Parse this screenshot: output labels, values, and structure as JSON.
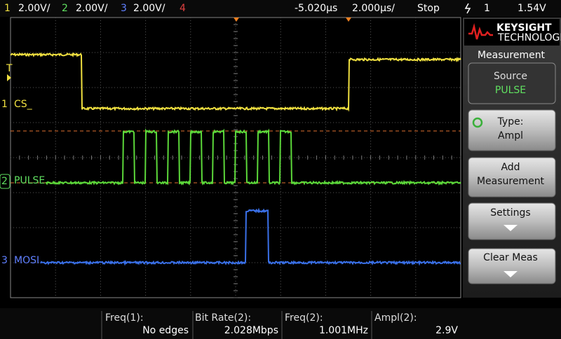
{
  "top_bar": {
    "ch1": "1",
    "ch1_scale": "2.00V/",
    "ch2": "2",
    "ch2_scale": "2.00V/",
    "ch3": "3",
    "ch3_scale": "2.00V/",
    "ch4": "4",
    "delay": "-5.020µs",
    "timebase": "2.000µs/",
    "run_state": "Stop",
    "trigger_source": "1",
    "trigger_level": "1.54V"
  },
  "channels": [
    {
      "marker": "1",
      "label": "CS_"
    },
    {
      "marker": "2",
      "label": "PULSE"
    },
    {
      "marker": "3",
      "label": "MOSI"
    }
  ],
  "trigger_marker": "T",
  "panel": {
    "brand": "KEYSIGHT",
    "brand_sub": "TECHNOLOGIES",
    "menu_title": "Measurement",
    "buttons": [
      {
        "label": "Source",
        "value": "PULSE"
      },
      {
        "label": "Type:",
        "value": "Ampl"
      },
      {
        "label": "Add",
        "value": "Measurement"
      },
      {
        "label": "Settings"
      },
      {
        "label": "Clear Meas"
      }
    ]
  },
  "measurements": [
    {
      "name": "Freq(1):",
      "value": "No edges"
    },
    {
      "name": "Bit Rate(2):",
      "value": "2.028Mbps"
    },
    {
      "name": "Freq(2):",
      "value": "1.001MHz"
    },
    {
      "name": "Ampl(2):",
      "value": "2.9V"
    }
  ]
}
